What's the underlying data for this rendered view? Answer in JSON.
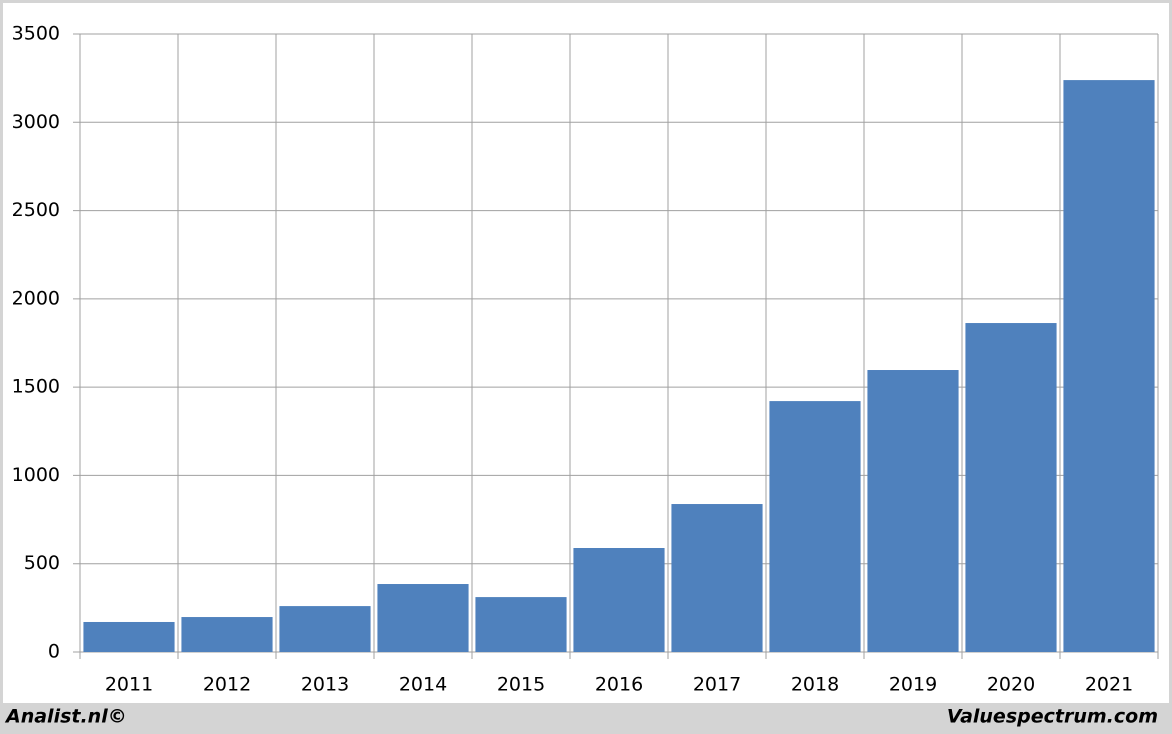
{
  "chart_data": {
    "type": "bar",
    "categories": [
      "2011",
      "2012",
      "2013",
      "2014",
      "2015",
      "2016",
      "2017",
      "2018",
      "2019",
      "2020",
      "2021"
    ],
    "values": [
      170,
      198,
      260,
      385,
      311,
      589,
      838,
      1421,
      1597,
      1863,
      3239
    ],
    "color": "#4f81bd",
    "ylim": [
      0,
      3500
    ],
    "yticks": [
      0,
      500,
      1000,
      1500,
      2000,
      2500,
      3000,
      3500
    ],
    "grid": true
  },
  "footer": {
    "left": "Analist.nl©",
    "right": "Valuespectrum.com"
  }
}
